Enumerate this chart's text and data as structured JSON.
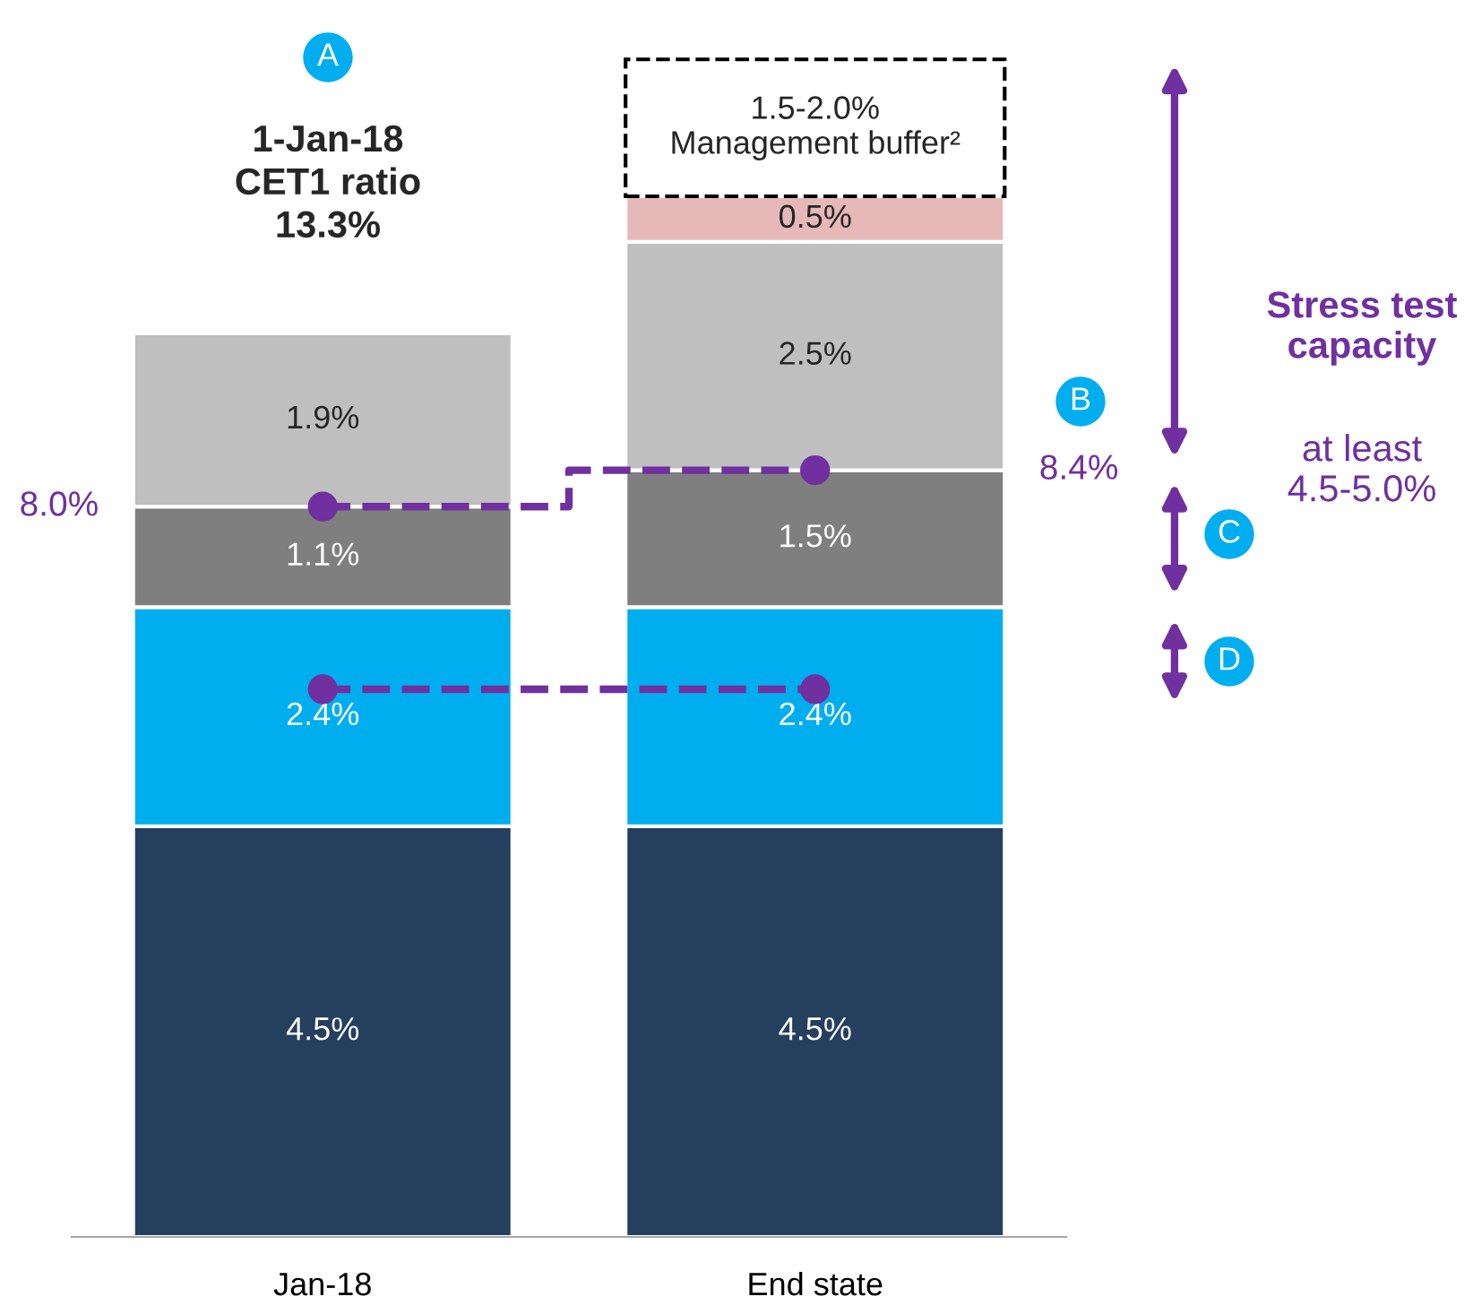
{
  "chart_data": {
    "type": "bar",
    "stacked": true,
    "legend": false,
    "grid": false,
    "tick_labels": "x",
    "categories": [
      "Jan-18",
      "End state"
    ],
    "series": [
      {
        "color": "#253f5f",
        "values": [
          4.5,
          4.5
        ],
        "value_labels": [
          "4.5%",
          "4.5%"
        ]
      },
      {
        "color": "#00aeef",
        "values": [
          2.4,
          2.4
        ],
        "value_labels": [
          "2.4%",
          "2.4%"
        ]
      },
      {
        "color": "#7f7f7f",
        "values": [
          1.1,
          1.5
        ],
        "value_labels": [
          "1.1%",
          "1.5%"
        ]
      },
      {
        "color": "#bfbfbf",
        "values": [
          1.9,
          2.5
        ],
        "value_labels": [
          "1.9%",
          "2.5%"
        ]
      },
      {
        "color": "#e6b9b8",
        "values": [
          null,
          0.5
        ],
        "value_labels": [
          null,
          "0.5%"
        ]
      },
      {
        "color": "#ffffff",
        "line_style": "dashed",
        "values": [
          null,
          1.5
        ],
        "value_labels": [
          null,
          "1.5-2.0%\nManagement buffer²"
        ]
      },
      {
        "type": "step",
        "color": "#7030a0",
        "line_style": "dashed",
        "marker": "circle",
        "values": [
          8.0,
          8.4
        ]
      },
      {
        "type": "step",
        "color": "#7030a0",
        "line_style": "dashed",
        "marker": "circle",
        "values": [
          6.0,
          6.0
        ]
      }
    ],
    "annotations": [
      "8.0%",
      "8.4%",
      "A",
      "1-Jan-18\nCET1 ratio\n13.3%",
      "B",
      "C",
      "D",
      "Stress test\ncapacity",
      "at least\n4.5-5.0%"
    ]
  }
}
